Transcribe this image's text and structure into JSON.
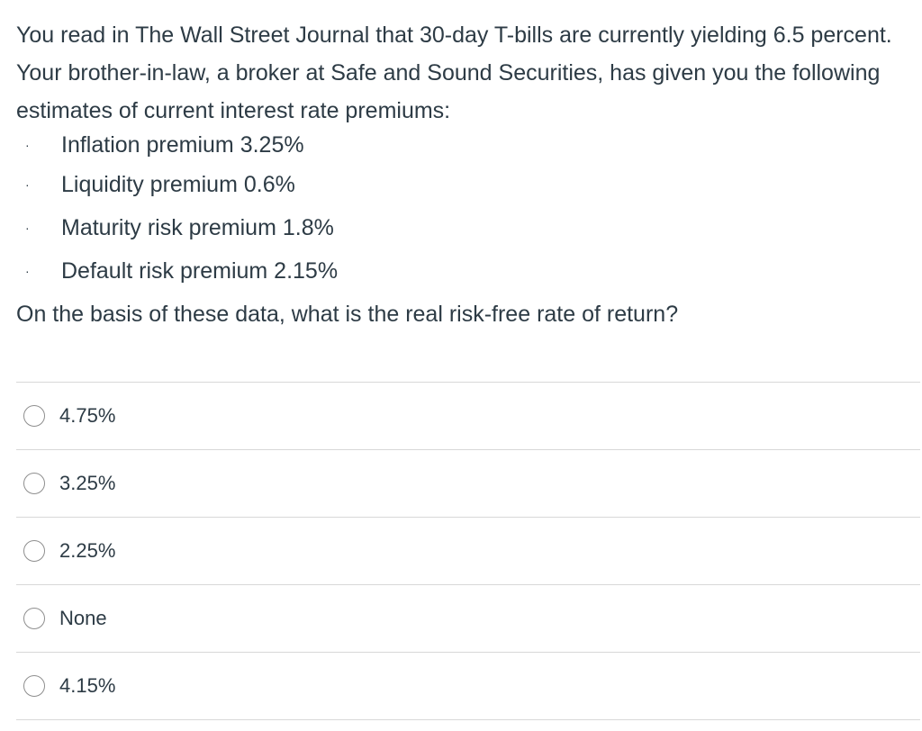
{
  "question": {
    "intro": "You read in The Wall Street Journal that 30-day T-bills are currently yielding 6.5 percent. Your brother-in-law, a broker at Safe and Sound Securities, has given you the following estimates of current interest rate premiums:",
    "bullet_glyph": "·",
    "premiums": [
      {
        "label": "Inflation premium 3.25%"
      },
      {
        "label": "Liquidity premium 0.6%"
      },
      {
        "label": "Maturity risk premium 1.8%"
      },
      {
        "label": "Default risk premium 2.15%"
      }
    ],
    "prompt": "On the basis of these data, what is the real risk-free rate of return?"
  },
  "answers": [
    {
      "label": "4.75%",
      "selected": false
    },
    {
      "label": "3.25%",
      "selected": false
    },
    {
      "label": "2.25%",
      "selected": false
    },
    {
      "label": "None",
      "selected": false
    },
    {
      "label": "4.15%",
      "selected": false
    }
  ],
  "colors": {
    "text": "#2d3b45",
    "divider": "#d8d8d8",
    "radio_border": "#8e8e8e"
  }
}
